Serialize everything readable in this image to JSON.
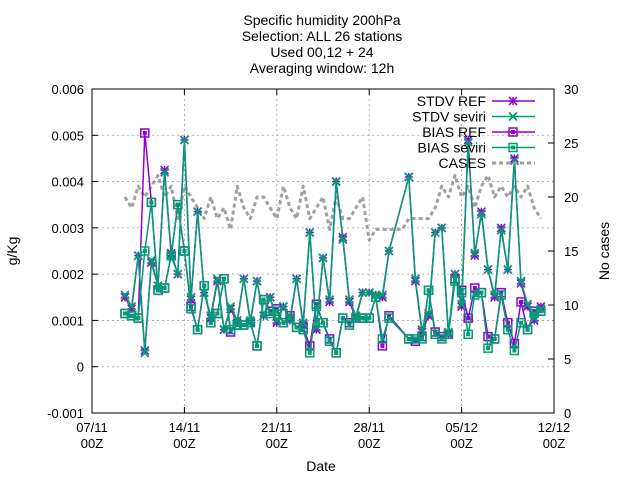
{
  "chart_data": {
    "type": "line",
    "title_lines": [
      "Specific humidity 200hPa",
      "Selection: ALL      26 stations",
      "Used 00,12 + 24",
      "Averaging window: 12h"
    ],
    "xlabel": "Date",
    "ylabel": "g/Kg",
    "y2label": "No cases",
    "grid": true,
    "legend_position": "top-right",
    "x_range": [
      "2019-11-07T00:00",
      "2019-12-12T00:00"
    ],
    "x_ticks": [
      {
        "date": "2019-11-07T00:00",
        "line1": "07/11",
        "line2": "00Z"
      },
      {
        "date": "2019-11-14T00:00",
        "line1": "14/11",
        "line2": "00Z"
      },
      {
        "date": "2019-11-21T00:00",
        "line1": "21/11",
        "line2": "00Z"
      },
      {
        "date": "2019-11-28T00:00",
        "line1": "28/11",
        "line2": "00Z"
      },
      {
        "date": "2019-12-05T00:00",
        "line1": "05/12",
        "line2": "00Z"
      },
      {
        "date": "2019-12-12T00:00",
        "line1": "12/12",
        "line2": "00Z"
      }
    ],
    "y_range": [
      -0.001,
      0.006
    ],
    "y_ticks": [
      "-0.001",
      "0",
      "0.001",
      "0.002",
      "0.003",
      "0.004",
      "0.005",
      "0.006"
    ],
    "y2_range": [
      0,
      30
    ],
    "y2_ticks": [
      "0",
      "5",
      "10",
      "15",
      "20",
      "25",
      "30"
    ],
    "x": [
      "2019-11-09T12:00",
      "2019-11-10T00:00",
      "2019-11-10T12:00",
      "2019-11-11T00:00",
      "2019-11-11T12:00",
      "2019-11-12T00:00",
      "2019-11-12T12:00",
      "2019-11-13T00:00",
      "2019-11-13T12:00",
      "2019-11-14T00:00",
      "2019-11-14T12:00",
      "2019-11-15T00:00",
      "2019-11-15T12:00",
      "2019-11-16T00:00",
      "2019-11-16T12:00",
      "2019-11-17T00:00",
      "2019-11-17T12:00",
      "2019-11-18T00:00",
      "2019-11-18T12:00",
      "2019-11-19T00:00",
      "2019-11-19T12:00",
      "2019-11-20T00:00",
      "2019-11-20T12:00",
      "2019-11-21T00:00",
      "2019-11-21T12:00",
      "2019-11-22T00:00",
      "2019-11-22T12:00",
      "2019-11-23T00:00",
      "2019-11-23T12:00",
      "2019-11-24T00:00",
      "2019-11-24T12:00",
      "2019-11-25T00:00",
      "2019-11-25T12:00",
      "2019-11-26T00:00",
      "2019-11-26T12:00",
      "2019-11-27T00:00",
      "2019-11-27T12:00",
      "2019-11-28T00:00",
      "2019-11-28T12:00",
      "2019-11-29T00:00",
      "2019-11-29T12:00",
      "2019-12-01T00:00",
      "2019-12-01T12:00",
      "2019-12-02T00:00",
      "2019-12-02T12:00",
      "2019-12-03T00:00",
      "2019-12-03T12:00",
      "2019-12-04T00:00",
      "2019-12-04T12:00",
      "2019-12-05T00:00",
      "2019-12-05T12:00",
      "2019-12-06T00:00",
      "2019-12-06T12:00",
      "2019-12-07T00:00",
      "2019-12-07T12:00",
      "2019-12-08T00:00",
      "2019-12-08T12:00",
      "2019-12-09T00:00",
      "2019-12-09T12:00",
      "2019-12-10T00:00",
      "2019-12-10T12:00",
      "2019-12-11T00:00"
    ],
    "series": [
      {
        "name": "STDV REF",
        "color": "#9400d3",
        "marker": "cross",
        "values": [
          0.0015,
          0.00125,
          0.0024,
          0.00035,
          0.00225,
          0.00175,
          0.00425,
          0.00245,
          0.002,
          0.0049,
          0.00145,
          0.00335,
          0.0016,
          0.00105,
          0.00185,
          0.0008,
          0.00125,
          0.00095,
          0.0019,
          0.00095,
          0.00185,
          0.0011,
          0.0015,
          0.00095,
          0.0013,
          0.001,
          0.0019,
          0.0009,
          0.0029,
          0.0008,
          0.00235,
          0.0014,
          0.004,
          0.0028,
          0.0014,
          0.00105,
          0.0016,
          0.0016,
          0.00155,
          0.0015,
          0.0025,
          0.0041,
          0.00185,
          0.00075,
          0.0011,
          0.0029,
          0.003,
          0.0007,
          0.002,
          0.0013,
          0.0049,
          0.0024,
          0.00335,
          0.0021,
          0.0015,
          0.003,
          0.0021,
          0.0045,
          0.0018,
          0.0013,
          0.001,
          0.0013
        ]
      },
      {
        "name": "STDV seviri",
        "color": "#009e73",
        "marker": "x",
        "values": [
          0.00155,
          0.0013,
          0.0024,
          0.0003,
          0.0023,
          0.00175,
          0.0042,
          0.0024,
          0.002,
          0.0049,
          0.0015,
          0.00335,
          0.0016,
          0.0011,
          0.0019,
          0.0008,
          0.0013,
          0.001,
          0.0019,
          0.001,
          0.00185,
          0.0011,
          0.0015,
          0.001,
          0.0013,
          0.00105,
          0.0019,
          0.00095,
          0.0029,
          0.00085,
          0.00235,
          0.00145,
          0.004,
          0.00275,
          0.00145,
          0.0011,
          0.0016,
          0.0016,
          0.00155,
          0.00155,
          0.0025,
          0.0041,
          0.0019,
          0.0008,
          0.00115,
          0.0029,
          0.003,
          0.00075,
          0.002,
          0.00135,
          0.00485,
          0.00245,
          0.0033,
          0.0021,
          0.00155,
          0.00295,
          0.0021,
          0.00445,
          0.00185,
          0.00135,
          0.00105,
          0.00125
        ]
      },
      {
        "name": "BIAS REF",
        "color": "#9400d3",
        "marker": "square",
        "values": [
          0.00115,
          0.0011,
          0.00105,
          0.00505,
          0.00355,
          0.00165,
          0.0017,
          0.0024,
          0.0035,
          0.0025,
          0.0013,
          0.0008,
          0.00175,
          0.00095,
          0.00115,
          0.0019,
          0.00075,
          0.0009,
          0.0009,
          0.00095,
          0.00045,
          0.00145,
          0.0012,
          0.00125,
          0.00095,
          0.0011,
          0.00085,
          0.00085,
          0.00045,
          0.00135,
          0.00095,
          0.0006,
          0.0003,
          0.00105,
          0.00095,
          0.00105,
          0.00105,
          0.00105,
          0.0015,
          0.00045,
          0.0011,
          0.0006,
          0.00055,
          0.00065,
          0.00165,
          0.00075,
          0.00065,
          0.0007,
          0.0019,
          0.00165,
          0.00105,
          0.0017,
          0.0016,
          0.00065,
          0.0006,
          0.0016,
          0.00095,
          0.0005,
          0.0014,
          0.0008,
          0.0012,
          0.0012
        ]
      },
      {
        "name": "BIAS seviri",
        "color": "#009e73",
        "marker": "square",
        "values": [
          0.00115,
          0.0011,
          0.00105,
          0.0025,
          0.00355,
          0.00165,
          0.0017,
          0.0024,
          0.0035,
          0.0025,
          0.00125,
          0.0008,
          0.00175,
          0.00095,
          0.00115,
          0.0019,
          0.0008,
          0.0009,
          0.0009,
          0.00095,
          0.00045,
          0.00145,
          0.00115,
          0.0012,
          0.00095,
          0.00105,
          0.00085,
          0.0008,
          0.0003,
          0.0013,
          0.00095,
          0.00055,
          0.0003,
          0.00105,
          0.0009,
          0.00105,
          0.00105,
          0.00105,
          0.0015,
          0.0006,
          0.00105,
          0.0006,
          0.0006,
          0.0006,
          0.00165,
          0.0007,
          0.0006,
          0.0007,
          0.00185,
          0.0016,
          0.0007,
          0.00155,
          0.0016,
          0.0004,
          0.0006,
          0.00155,
          0.0008,
          0.00035,
          0.00095,
          0.0008,
          0.00115,
          0.0012
        ]
      },
      {
        "name": "CASES",
        "color": "#a0a0a0",
        "marker": "none",
        "axis": "y2",
        "x": [
          "2019-11-09T12:00",
          "2019-11-10T00:00",
          "2019-11-10T12:00",
          "2019-11-11T00:00",
          "2019-11-11T12:00",
          "2019-11-12T00:00",
          "2019-11-12T12:00",
          "2019-11-13T00:00",
          "2019-11-13T12:00",
          "2019-11-14T00:00",
          "2019-11-14T12:00",
          "2019-11-15T00:00",
          "2019-11-15T12:00",
          "2019-11-16T00:00",
          "2019-11-16T12:00",
          "2019-11-17T00:00",
          "2019-11-17T12:00",
          "2019-11-18T00:00",
          "2019-11-18T12:00",
          "2019-11-19T00:00",
          "2019-11-19T12:00",
          "2019-11-20T00:00",
          "2019-11-20T12:00",
          "2019-11-21T00:00",
          "2019-11-21T12:00",
          "2019-11-22T00:00",
          "2019-11-22T12:00",
          "2019-11-23T00:00",
          "2019-11-23T12:00",
          "2019-11-24T00:00",
          "2019-11-24T12:00",
          "2019-11-25T00:00",
          "2019-11-25T12:00",
          "2019-11-26T00:00",
          "2019-11-26T12:00",
          "2019-11-27T00:00",
          "2019-11-27T12:00",
          "2019-11-28T00:00",
          "2019-11-28T12:00",
          "2019-11-29T00:00",
          "2019-11-29T12:00",
          "2019-11-30T00:00",
          "2019-11-30T12:00",
          "2019-12-01T00:00",
          "2019-12-01T12:00",
          "2019-12-02T00:00",
          "2019-12-02T12:00",
          "2019-12-03T00:00",
          "2019-12-03T12:00",
          "2019-12-04T00:00",
          "2019-12-04T12:00",
          "2019-12-05T00:00",
          "2019-12-05T12:00",
          "2019-12-06T00:00",
          "2019-12-06T12:00",
          "2019-12-07T00:00",
          "2019-12-07T12:00",
          "2019-12-08T00:00",
          "2019-12-08T12:00",
          "2019-12-09T00:00",
          "2019-12-09T12:00",
          "2019-12-10T00:00",
          "2019-12-10T12:00",
          "2019-12-11T00:00"
        ],
        "values": [
          20,
          19,
          21,
          20,
          21,
          22,
          20,
          21,
          18,
          21,
          20,
          19,
          18,
          20,
          18,
          19,
          17,
          21,
          19,
          18,
          20,
          20,
          19,
          18,
          21,
          19,
          18,
          21,
          18,
          19,
          20,
          17,
          20,
          18,
          18,
          19,
          20,
          16,
          17,
          17,
          17,
          17,
          17,
          18,
          18,
          18,
          18,
          19,
          21,
          20,
          22,
          20,
          21,
          19,
          21,
          22,
          20,
          21,
          20,
          21,
          20,
          21,
          19,
          18
        ]
      }
    ]
  }
}
